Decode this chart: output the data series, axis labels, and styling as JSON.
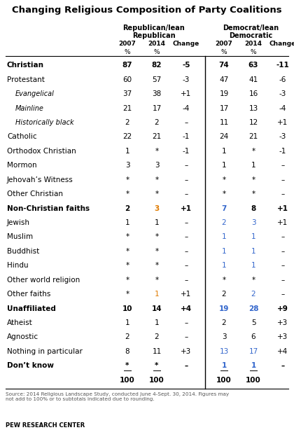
{
  "title": "Changing Religious Composition of Party Coalitions",
  "rows": [
    {
      "label": "Christian",
      "indent": 0,
      "bold": true,
      "italic": false,
      "rep": [
        "87",
        "82",
        "-5"
      ],
      "dem": [
        "74",
        "63",
        "-11"
      ]
    },
    {
      "label": "Protestant",
      "indent": 0,
      "bold": false,
      "italic": false,
      "rep": [
        "60",
        "57",
        "-3"
      ],
      "dem": [
        "47",
        "41",
        "-6"
      ]
    },
    {
      "label": "Evangelical",
      "indent": 1,
      "bold": false,
      "italic": true,
      "rep": [
        "37",
        "38",
        "+1"
      ],
      "dem": [
        "19",
        "16",
        "-3"
      ]
    },
    {
      "label": "Mainline",
      "indent": 1,
      "bold": false,
      "italic": true,
      "rep": [
        "21",
        "17",
        "-4"
      ],
      "dem": [
        "17",
        "13",
        "-4"
      ]
    },
    {
      "label": "Historically black",
      "indent": 1,
      "bold": false,
      "italic": true,
      "rep": [
        "2",
        "2",
        "–"
      ],
      "dem": [
        "11",
        "12",
        "+1"
      ]
    },
    {
      "label": "Catholic",
      "indent": 0,
      "bold": false,
      "italic": false,
      "rep": [
        "22",
        "21",
        "-1"
      ],
      "dem": [
        "24",
        "21",
        "-3"
      ]
    },
    {
      "label": "Orthodox Christian",
      "indent": 0,
      "bold": false,
      "italic": false,
      "rep": [
        "1",
        "*",
        "-1"
      ],
      "dem": [
        "1",
        "*",
        "-1"
      ]
    },
    {
      "label": "Mormon",
      "indent": 0,
      "bold": false,
      "italic": false,
      "rep": [
        "3",
        "3",
        "–"
      ],
      "dem": [
        "1",
        "1",
        "–"
      ]
    },
    {
      "label": "Jehovah’s Witness",
      "indent": 0,
      "bold": false,
      "italic": false,
      "rep": [
        "*",
        "*",
        "–"
      ],
      "dem": [
        "*",
        "*",
        "–"
      ]
    },
    {
      "label": "Other Christian",
      "indent": 0,
      "bold": false,
      "italic": false,
      "rep": [
        "*",
        "*",
        "–"
      ],
      "dem": [
        "*",
        "*",
        "–"
      ]
    },
    {
      "label": "Non-Christian faiths",
      "indent": 0,
      "bold": true,
      "italic": false,
      "rep": [
        "2",
        "3",
        "+1"
      ],
      "dem": [
        "7",
        "8",
        "+1"
      ]
    },
    {
      "label": "Jewish",
      "indent": 0,
      "bold": false,
      "italic": false,
      "rep": [
        "1",
        "1",
        "–"
      ],
      "dem": [
        "2",
        "3",
        "+1"
      ]
    },
    {
      "label": "Muslim",
      "indent": 0,
      "bold": false,
      "italic": false,
      "rep": [
        "*",
        "*",
        "–"
      ],
      "dem": [
        "1",
        "1",
        "–"
      ]
    },
    {
      "label": "Buddhist",
      "indent": 0,
      "bold": false,
      "italic": false,
      "rep": [
        "*",
        "*",
        "–"
      ],
      "dem": [
        "1",
        "1",
        "–"
      ]
    },
    {
      "label": "Hindu",
      "indent": 0,
      "bold": false,
      "italic": false,
      "rep": [
        "*",
        "*",
        "–"
      ],
      "dem": [
        "1",
        "1",
        "–"
      ]
    },
    {
      "label": "Other world religion",
      "indent": 0,
      "bold": false,
      "italic": false,
      "rep": [
        "*",
        "*",
        "–"
      ],
      "dem": [
        "*",
        "*",
        "–"
      ]
    },
    {
      "label": "Other faiths",
      "indent": 0,
      "bold": false,
      "italic": false,
      "rep": [
        "*",
        "1",
        "+1"
      ],
      "dem": [
        "2",
        "2",
        "–"
      ]
    },
    {
      "label": "Unaffiliated",
      "indent": 0,
      "bold": true,
      "italic": false,
      "rep": [
        "10",
        "14",
        "+4"
      ],
      "dem": [
        "19",
        "28",
        "+9"
      ]
    },
    {
      "label": "Atheist",
      "indent": 0,
      "bold": false,
      "italic": false,
      "rep": [
        "1",
        "1",
        "–"
      ],
      "dem": [
        "2",
        "5",
        "+3"
      ]
    },
    {
      "label": "Agnostic",
      "indent": 0,
      "bold": false,
      "italic": false,
      "rep": [
        "2",
        "2",
        "–"
      ],
      "dem": [
        "3",
        "6",
        "+3"
      ]
    },
    {
      "label": "Nothing in particular",
      "indent": 0,
      "bold": false,
      "italic": false,
      "rep": [
        "8",
        "11",
        "+3"
      ],
      "dem": [
        "13",
        "17",
        "+4"
      ]
    },
    {
      "label": "Don’t know",
      "indent": 0,
      "bold": true,
      "italic": false,
      "rep": [
        "*",
        "*",
        "–"
      ],
      "dem": [
        "1",
        "1",
        "–"
      ],
      "underline_vals": true
    },
    {
      "label": "",
      "indent": 0,
      "bold": true,
      "italic": false,
      "rep": [
        "100",
        "100",
        ""
      ],
      "dem": [
        "100",
        "100",
        ""
      ],
      "total_row": true
    }
  ],
  "colored_cells": {
    "10_1": "orange",
    "16_1": "orange",
    "10_3": "blue",
    "11_3": "blue",
    "11_4": "blue",
    "12_3": "blue",
    "12_4": "blue",
    "13_3": "blue",
    "13_4": "blue",
    "14_3": "blue",
    "14_4": "blue",
    "16_4": "blue",
    "17_3": "blue",
    "17_4": "blue",
    "20_3": "blue",
    "20_4": "blue",
    "21_3": "blue",
    "21_4": "blue"
  },
  "source_text": "Source: 2014 Religious Landscape Study, conducted June 4-Sept. 30, 2014. Figures may\nnot add to 100% or to subtotals indicated due to rounding.",
  "pew_text": "PEW RESEARCH CENTER",
  "background_color": "#ffffff",
  "text_color": "#000000",
  "orange_color": "#e07b00",
  "blue_color": "#3366cc",
  "divider_color": "#000000",
  "line_color": "#000000"
}
